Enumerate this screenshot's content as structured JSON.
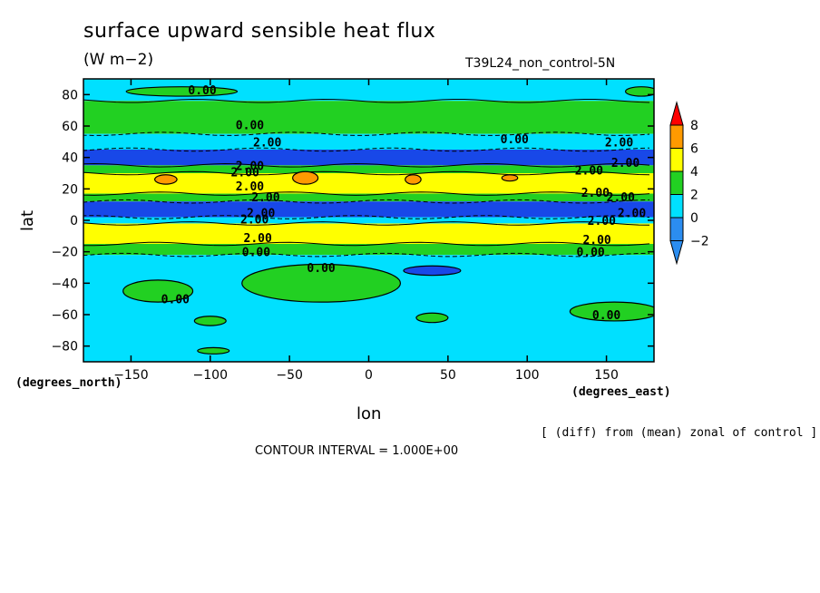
{
  "chart_data": {
    "type": "heatmap",
    "title": "surface upward sensible heat flux",
    "units": "(W m−2)",
    "experiment": "T39L24_non_control-5N",
    "xlabel": "lon",
    "ylabel": "lat",
    "x_unit_label": "(degrees_east)",
    "y_unit_label": "(degrees_north)",
    "xlim": [
      -180,
      180
    ],
    "ylim": [
      -90,
      90
    ],
    "x_ticks": [
      -150,
      -100,
      -50,
      0,
      50,
      100,
      150
    ],
    "x_tick_labels": [
      "−150",
      "−100",
      "−50",
      "0",
      "50",
      "100",
      "150"
    ],
    "y_ticks": [
      80,
      60,
      40,
      20,
      0,
      -20,
      -40,
      -60,
      -80
    ],
    "y_tick_labels": [
      "80",
      "60",
      "40",
      "20",
      "0",
      "−20",
      "−40",
      "−60",
      "−80"
    ],
    "colorbar": {
      "levels": [
        -2,
        0,
        2,
        4,
        6,
        8
      ],
      "labels": [
        "−2",
        "0",
        "2",
        "4",
        "6",
        "8"
      ],
      "colors": [
        "#2b8df0",
        "#00e0ff",
        "#22d022",
        "#ffff00",
        "#ff9a00",
        "#ff0000"
      ],
      "below_color": "#1848e8"
    },
    "zonal_bands": [
      {
        "lat_min": 76,
        "lat_max": 90,
        "value": -1
      },
      {
        "lat_min": 55,
        "lat_max": 76,
        "value": 1
      },
      {
        "lat_min": 45,
        "lat_max": 55,
        "value": -1
      },
      {
        "lat_min": 35,
        "lat_max": 45,
        "value": -3
      },
      {
        "lat_min": 30,
        "lat_max": 35,
        "value": 1
      },
      {
        "lat_min": 17,
        "lat_max": 30,
        "value": 3
      },
      {
        "lat_min": 12,
        "lat_max": 17,
        "value": 1
      },
      {
        "lat_min": 2,
        "lat_max": 12,
        "value": -3
      },
      {
        "lat_min": -2,
        "lat_max": 2,
        "value": -1
      },
      {
        "lat_min": -15,
        "lat_max": -2,
        "value": 3
      },
      {
        "lat_min": -22,
        "lat_max": -15,
        "value": 1
      },
      {
        "lat_min": -90,
        "lat_max": -22,
        "value": -1
      }
    ],
    "patches": [
      {
        "lon": -128,
        "lat": 26,
        "rlon": 7,
        "rlat": 3,
        "value": 5
      },
      {
        "lon": -40,
        "lat": 27,
        "rlon": 8,
        "rlat": 4,
        "value": 5
      },
      {
        "lon": 28,
        "lat": 26,
        "rlon": 5,
        "rlat": 3,
        "value": 5
      },
      {
        "lon": 89,
        "lat": 27,
        "rlon": 5,
        "rlat": 2,
        "value": 5
      },
      {
        "lon": -30,
        "lat": -40,
        "rlon": 50,
        "rlat": 12,
        "value": 1
      },
      {
        "lon": -133,
        "lat": -45,
        "rlon": 22,
        "rlat": 7,
        "value": 1
      },
      {
        "lon": 155,
        "lat": -58,
        "rlon": 28,
        "rlat": 6,
        "value": 1
      },
      {
        "lon": 40,
        "lat": -62,
        "rlon": 10,
        "rlat": 3,
        "value": 1
      },
      {
        "lon": -100,
        "lat": -64,
        "rlon": 10,
        "rlat": 3,
        "value": 1
      },
      {
        "lon": -98,
        "lat": -83,
        "rlon": 10,
        "rlat": 2,
        "value": 1
      },
      {
        "lon": 40,
        "lat": -32,
        "rlon": 18,
        "rlat": 3,
        "value": -3
      },
      {
        "lon": -118,
        "lat": 82,
        "rlon": 35,
        "rlat": 3,
        "value": 1
      },
      {
        "lon": 172,
        "lat": 82,
        "rlon": 10,
        "rlat": 3,
        "value": 1
      }
    ],
    "contour_labels": [
      {
        "text": "0.00",
        "lon": -105,
        "lat": 83
      },
      {
        "text": "0.00",
        "lon": -75,
        "lat": 61
      },
      {
        "text": "0.00",
        "lon": 92,
        "lat": 52
      },
      {
        "text": "2.00",
        "lon": -64,
        "lat": 50
      },
      {
        "text": "2.00",
        "lon": 158,
        "lat": 50
      },
      {
        "text": "2.00",
        "lon": 162,
        "lat": 37
      },
      {
        "text": "2.00",
        "lon": -75,
        "lat": 35
      },
      {
        "text": "2.00",
        "lon": -78,
        "lat": 31
      },
      {
        "text": "2.00",
        "lon": 139,
        "lat": 32
      },
      {
        "text": "2.00",
        "lon": -75,
        "lat": 22
      },
      {
        "text": "2.00",
        "lon": -65,
        "lat": 15
      },
      {
        "text": "2.00",
        "lon": 143,
        "lat": 18
      },
      {
        "text": "2.00",
        "lon": 159,
        "lat": 15
      },
      {
        "text": "2.00",
        "lon": -68,
        "lat": 5
      },
      {
        "text": "2.00",
        "lon": -72,
        "lat": 1
      },
      {
        "text": "2.00",
        "lon": 147,
        "lat": 0
      },
      {
        "text": "2.00",
        "lon": 166,
        "lat": 5
      },
      {
        "text": "2.00",
        "lon": -70,
        "lat": -11
      },
      {
        "text": "2.00",
        "lon": 144,
        "lat": -12
      },
      {
        "text": "0.00",
        "lon": -71,
        "lat": -20
      },
      {
        "text": "0.00",
        "lon": 140,
        "lat": -20
      },
      {
        "text": "0.00",
        "lon": -30,
        "lat": -30
      },
      {
        "text": "0.00",
        "lon": -122,
        "lat": -50
      },
      {
        "text": "0.00",
        "lon": 150,
        "lat": -60
      }
    ]
  },
  "annotations": {
    "note": "[ (diff) from (mean) zonal of control ]",
    "contour_interval": "CONTOUR INTERVAL = 1.000E+00"
  }
}
